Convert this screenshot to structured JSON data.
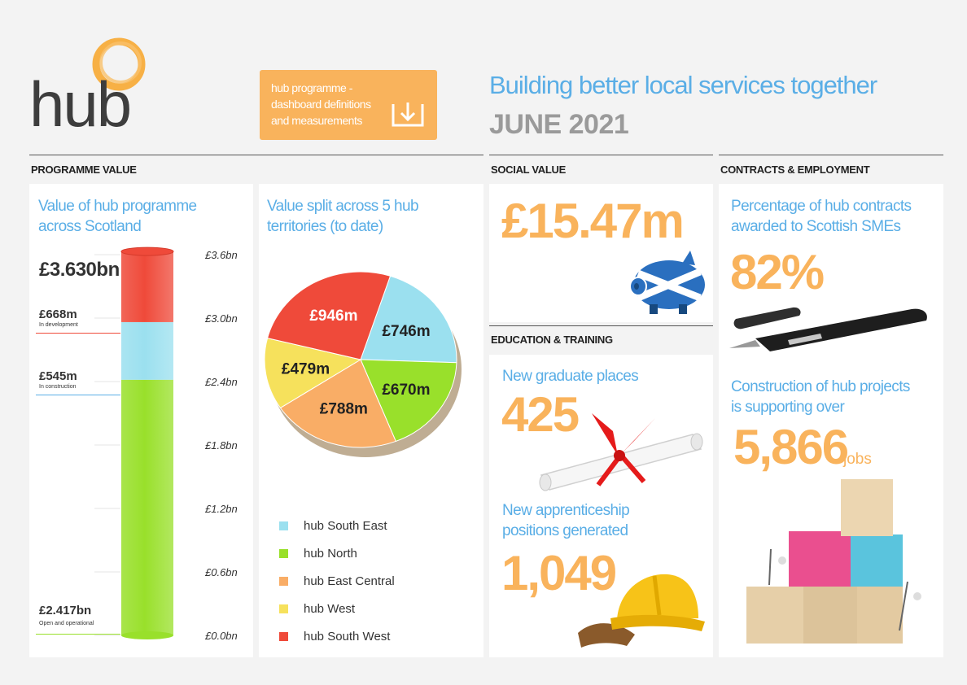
{
  "header": {
    "logo_text": "hub",
    "download_button": {
      "line1": "hub programme -",
      "line2": "dashboard definitions",
      "line3": "and measurements"
    },
    "title": "Building better local services together",
    "date": "JUNE 2021"
  },
  "sections": {
    "programme_value": "PROGRAMME VALUE",
    "social_value": "SOCIAL VALUE",
    "education_training": "EDUCATION & TRAINING",
    "contracts_employment": "CONTRACTS & EMPLOYMENT"
  },
  "programme": {
    "heading_line1": "Value of hub programme",
    "heading_line2": "across Scotland",
    "total": "£3.630bn",
    "development_value": "£668m",
    "development_label": "In development",
    "construction_value": "£545m",
    "construction_label": "In construction",
    "operational_value": "£2.417bn",
    "operational_label": "Open and operational"
  },
  "split": {
    "heading_line1": "Value split across 5 hub",
    "heading_line2": "territories (to date)"
  },
  "social": {
    "value": "£15.47m"
  },
  "education": {
    "graduate_heading": "New graduate places",
    "graduate_value": "425",
    "apprentice_heading_line1": "New apprenticeship",
    "apprentice_heading_line2": "positions generated",
    "apprentice_value": "1,049"
  },
  "contracts": {
    "sme_heading_line1": "Percentage of hub contracts",
    "sme_heading_line2": "awarded to Scottish SMEs",
    "sme_value": "82%",
    "jobs_heading_line1": "Construction of hub projects",
    "jobs_heading_line2": "is supporting over",
    "jobs_value": "5,866",
    "jobs_unit": "jobs"
  },
  "colors": {
    "blue_text": "#5aaee6",
    "orange_text": "#f9b35c",
    "south_east": "#9be0ef",
    "north": "#99e02b",
    "east_central": "#f9ad66",
    "west": "#f6e15c",
    "south_west": "#ef4a3a"
  },
  "chart_data": [
    {
      "type": "bar",
      "stacked": true,
      "ylabel": "",
      "ylim": [
        0,
        3.6
      ],
      "yticks": [
        "£0.0bn",
        "£0.6bn",
        "£1.2bn",
        "£1.8bn",
        "£2.4bn",
        "£3.0bn",
        "£3.6bn"
      ],
      "series": [
        {
          "name": "Open and operational",
          "value_bn": 2.417,
          "color": "#99e02b"
        },
        {
          "name": "In construction",
          "value_bn": 0.545,
          "color": "#9be0ef"
        },
        {
          "name": "In development",
          "value_bn": 0.668,
          "color": "#ef4a3a"
        }
      ],
      "total_bn": 3.63
    },
    {
      "type": "pie",
      "slices": [
        {
          "name": "hub South East",
          "value": 746,
          "label": "£746m",
          "color": "#9be0ef"
        },
        {
          "name": "hub North",
          "value": 670,
          "label": "£670m",
          "color": "#99e02b"
        },
        {
          "name": "hub East Central",
          "value": 788,
          "label": "£788m",
          "color": "#f9ad66"
        },
        {
          "name": "hub West",
          "value": 479,
          "label": "£479m",
          "color": "#f6e15c"
        },
        {
          "name": "hub South West",
          "value": 946,
          "label": "£946m",
          "color": "#ef4a3a"
        }
      ],
      "legend": [
        "hub South East",
        "hub North",
        "hub East Central",
        "hub West",
        "hub South West"
      ]
    }
  ]
}
